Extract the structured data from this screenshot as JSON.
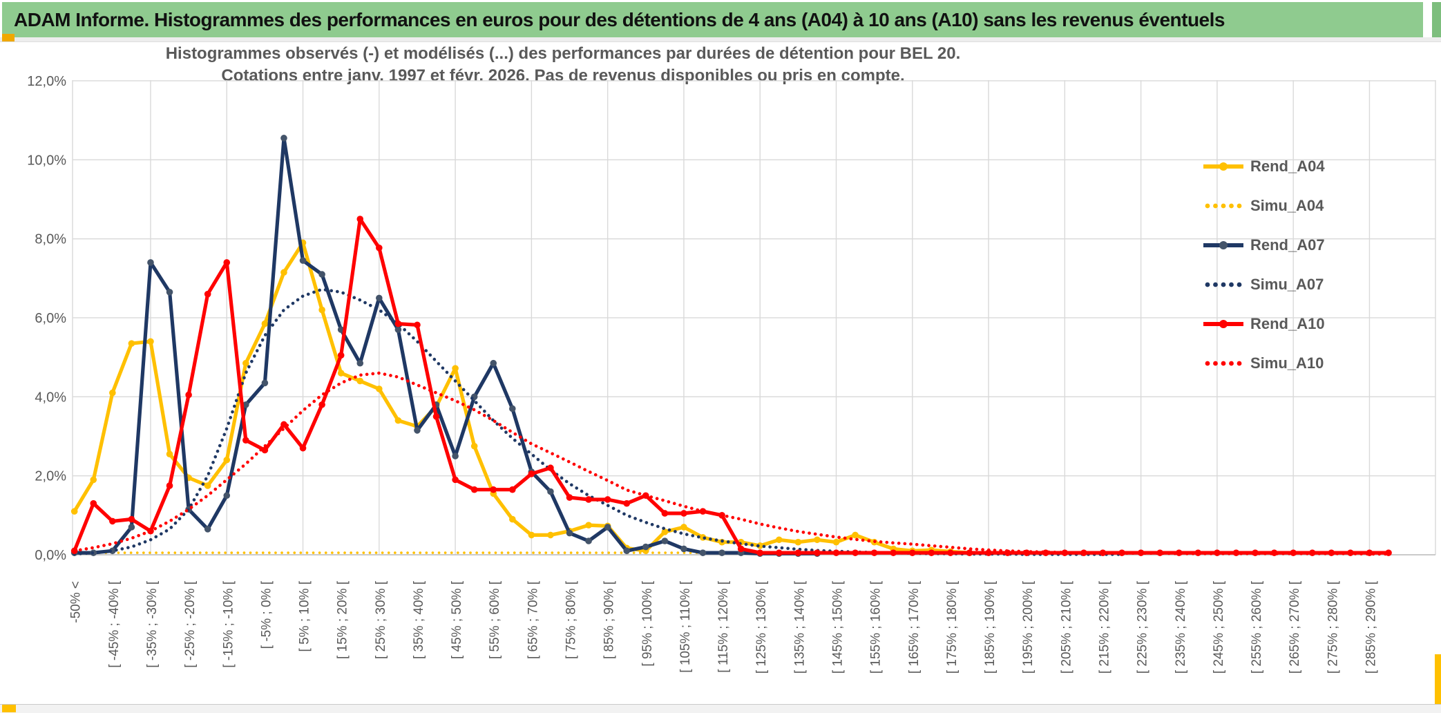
{
  "window": {
    "title": "ADAM Informe. Histogrammes des performances en euros pour des détentions de 4 ans (A04) à 10 ans (A10) sans les revenus éventuels"
  },
  "chart": {
    "title_line1": "Histogrammes observés (-) et modélisés (...) des performances par durées de détention pour BEL 20.",
    "title_line2": "Cotations entre janv. 1997 et févr. 2026. Pas de revenus disponibles ou pris en compte."
  },
  "legend": [
    {
      "label": "Rend_A04",
      "color": "#FFC000",
      "style": "solid"
    },
    {
      "label": "Simu_A04",
      "color": "#FFC000",
      "style": "dotted"
    },
    {
      "label": "Rend_A07",
      "color": "#1F3864",
      "style": "solid",
      "marker_color": "#44546A"
    },
    {
      "label": "Simu_A07",
      "color": "#1F3864",
      "style": "dotted"
    },
    {
      "label": "Rend_A10",
      "color": "#FF0000",
      "style": "solid"
    },
    {
      "label": "Simu_A10",
      "color": "#FF0000",
      "style": "dotted"
    }
  ],
  "chart_data": {
    "type": "line",
    "title": "Histogrammes observés (-) et modélisés (...) des performances par durées de détention pour BEL 20. Cotations entre janv. 1997 et févr. 2026. Pas de revenus disponibles ou pris en compte.",
    "ylim": [
      0,
      12
    ],
    "grid": true,
    "legend_position": "right",
    "n_categories": 70,
    "x_label_interval": 2,
    "y_tick_labels": [
      "0,0%",
      "2,0%",
      "4,0%",
      "6,0%",
      "8,0%",
      "10,0%",
      "12,0%"
    ],
    "x_labels": [
      "-50% <",
      "[ -45% ; -40% [",
      "[ -35% ; -30% [",
      "[ -25% ; -20% [",
      "[ -15% ; -10% [",
      "[ -5% ; 0% [",
      "[ 5% ; 10% [",
      "[ 15% ; 20% [",
      "[ 25% ; 30% [",
      "[ 35% ; 40% [",
      "[ 45% ; 50% [",
      "[ 55% ; 60% [",
      "[ 65% ; 70% [",
      "[ 75% ; 80% [",
      "[ 85% ; 90% [",
      "[ 95% ; 100% [",
      "[ 105% ; 110% [",
      "[ 115% ; 120% [",
      "[ 125% ; 130% [",
      "[ 135% ; 140% [",
      "[ 145% ; 150% [",
      "[ 155% ; 160% [",
      "[ 165% ; 170% [",
      "[ 175% ; 180% [",
      "[ 185% ; 190% [",
      "[ 195% ; 200% [",
      "[ 205% ; 210% [",
      "[ 215% ; 220% [",
      "[ 225% ; 230% [",
      "[ 235% ; 240% [",
      "[ 245% ; 250% [",
      "[ 255% ; 260% [",
      "[ 265% ; 270% [",
      "[ 275% ; 280% [",
      "[ 285% ; 290% ["
    ],
    "series": [
      {
        "name": "Rend_A04",
        "color": "#FFC000",
        "marker_color": "#FFC000",
        "style": "solid",
        "values": [
          1.1,
          1.9,
          4.1,
          5.35,
          5.4,
          2.55,
          1.95,
          1.75,
          2.4,
          4.85,
          5.85,
          7.15,
          7.9,
          6.2,
          4.6,
          4.4,
          4.2,
          3.4,
          3.25,
          3.75,
          4.72,
          2.75,
          1.55,
          0.9,
          0.5,
          0.5,
          0.6,
          0.75,
          0.73,
          0.17,
          0.1,
          0.58,
          0.7,
          0.44,
          0.32,
          0.32,
          0.23,
          0.38,
          0.32,
          0.38,
          0.32,
          0.5,
          0.32,
          0.15,
          0.1,
          0.12,
          0.08,
          0.05,
          null,
          null,
          null,
          null,
          null,
          null,
          null,
          null,
          null,
          null,
          null,
          null,
          null,
          null,
          null,
          null,
          null,
          null,
          null,
          null,
          null,
          null
        ]
      },
      {
        "name": "Simu_A04",
        "color": "#FFC000",
        "style": "dotted",
        "values": [
          0.05,
          0.05,
          0.05,
          0.05,
          0.05,
          0.05,
          0.05,
          0.05,
          0.05,
          0.05,
          0.05,
          0.05,
          0.05,
          0.05,
          0.05,
          0.05,
          0.05,
          0.05,
          0.05,
          0.05,
          0.05,
          0.05,
          0.05,
          0.05,
          0.05,
          0.05,
          0.05,
          0.05,
          0.05,
          0.05,
          0.05,
          0.05,
          0.05,
          0.05,
          0.05,
          0.05,
          0.05,
          0.05,
          0.05,
          0.05,
          0.05,
          0.05,
          0.05,
          0.05,
          0.05,
          0.05,
          0.05,
          0.05,
          0.05,
          0.05,
          0.05,
          0.05,
          0.05,
          0.05,
          0.05,
          0.05,
          0.05,
          0.05,
          0.05,
          0.05,
          0.05,
          0.05,
          0.05,
          0.05,
          0.05,
          0.05,
          0.05,
          0.05,
          0.05,
          0.05
        ]
      },
      {
        "name": "Rend_A07",
        "color": "#1F3864",
        "marker_color": "#44546A",
        "style": "solid",
        "values": [
          0.05,
          0.05,
          0.1,
          0.7,
          7.4,
          6.65,
          1.15,
          0.65,
          1.5,
          3.8,
          4.35,
          10.55,
          7.45,
          7.1,
          5.7,
          4.85,
          6.5,
          5.7,
          3.15,
          3.8,
          2.5,
          4.0,
          4.85,
          3.7,
          2.1,
          1.6,
          0.55,
          0.35,
          0.7,
          0.1,
          0.2,
          0.35,
          0.15,
          0.05,
          0.05,
          0.05,
          0.03,
          0.03,
          0.03,
          0.03,
          null,
          null,
          null,
          null,
          null,
          null,
          null,
          null,
          null,
          null,
          null,
          null,
          null,
          null,
          null,
          null,
          null,
          null,
          null,
          null,
          null,
          null,
          null,
          null,
          null,
          null,
          null,
          null,
          null,
          null
        ]
      },
      {
        "name": "Simu_A07",
        "color": "#1F3864",
        "style": "dotted",
        "values": [
          0.02,
          0.05,
          0.1,
          0.2,
          0.38,
          0.65,
          1.15,
          2.0,
          3.2,
          4.6,
          5.55,
          6.2,
          6.55,
          6.72,
          6.65,
          6.45,
          6.2,
          5.85,
          5.4,
          4.9,
          4.4,
          3.9,
          3.4,
          2.95,
          2.55,
          2.15,
          1.8,
          1.5,
          1.25,
          1.0,
          0.82,
          0.66,
          0.53,
          0.43,
          0.35,
          0.28,
          0.22,
          0.18,
          0.14,
          0.11,
          0.09,
          0.07,
          0.06,
          0.05,
          0.04,
          0.03,
          0.03,
          0.02,
          0.02,
          0.02,
          0.01,
          0.01,
          0.01,
          0.01,
          0.01,
          0.01,
          null,
          null,
          null,
          null,
          null,
          null,
          null,
          null,
          null,
          null,
          null,
          null,
          null,
          null
        ]
      },
      {
        "name": "Rend_A10",
        "color": "#FF0000",
        "marker_color": "#FF0000",
        "style": "solid",
        "values": [
          0.1,
          1.3,
          0.85,
          0.9,
          0.6,
          1.75,
          4.05,
          6.6,
          7.4,
          2.9,
          2.65,
          3.3,
          2.7,
          3.8,
          5.05,
          8.5,
          7.77,
          5.85,
          5.82,
          3.5,
          1.9,
          1.65,
          1.65,
          1.65,
          2.05,
          2.2,
          1.45,
          1.4,
          1.4,
          1.3,
          1.5,
          1.05,
          1.05,
          1.1,
          1.0,
          0.15,
          0.05,
          0.05,
          0.05,
          0.05,
          0.05,
          0.05,
          0.05,
          0.05,
          0.05,
          0.05,
          0.05,
          0.05,
          0.05,
          0.05,
          0.05,
          0.05,
          0.05,
          0.05,
          0.05,
          0.05,
          0.05,
          0.05,
          0.05,
          0.05,
          0.05,
          0.05,
          0.05,
          0.05,
          0.05,
          0.05,
          0.05,
          0.05,
          0.05,
          0.05
        ]
      },
      {
        "name": "Simu_A10",
        "color": "#FF0000",
        "style": "dotted",
        "values": [
          0.1,
          0.18,
          0.28,
          0.42,
          0.6,
          0.85,
          1.15,
          1.5,
          1.9,
          2.3,
          2.75,
          3.2,
          3.65,
          4.05,
          4.35,
          4.55,
          4.6,
          4.5,
          4.3,
          4.1,
          3.9,
          3.67,
          3.4,
          3.1,
          2.81,
          2.58,
          2.35,
          2.11,
          1.88,
          1.64,
          1.5,
          1.37,
          1.23,
          1.1,
          1.0,
          0.9,
          0.78,
          0.68,
          0.59,
          0.52,
          0.45,
          0.39,
          0.34,
          0.3,
          0.27,
          0.23,
          0.19,
          0.15,
          0.12,
          0.1,
          0.08,
          0.07,
          0.06,
          0.05,
          0.05,
          0.04,
          0.04,
          0.04,
          0.03,
          0.03,
          0.03,
          0.03,
          0.03,
          0.03,
          0.03,
          0.03,
          0.03,
          0.03,
          0.02,
          0.02
        ]
      }
    ]
  }
}
